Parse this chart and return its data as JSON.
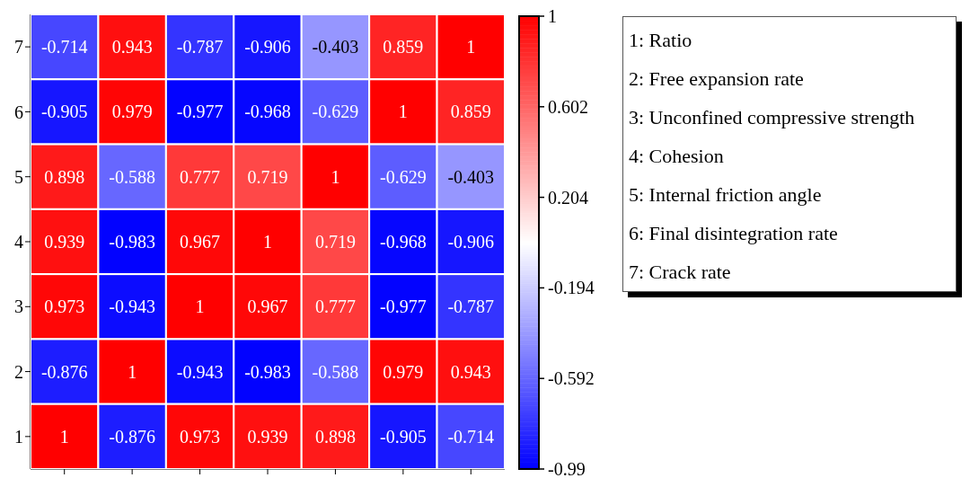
{
  "chart_data": {
    "type": "heatmap",
    "categories": [
      null,
      null,
      null,
      null,
      null,
      null,
      null
    ],
    "y_categories": [
      "7",
      "6",
      "5",
      "4",
      "3",
      "2",
      "1"
    ],
    "cells": [
      [
        -0.714,
        0.943,
        -0.787,
        -0.906,
        -0.403,
        0.859,
        1
      ],
      [
        -0.905,
        0.979,
        -0.977,
        -0.968,
        -0.629,
        1,
        0.859
      ],
      [
        0.898,
        -0.588,
        0.777,
        0.719,
        1,
        -0.629,
        -0.403
      ],
      [
        0.939,
        -0.983,
        0.967,
        1,
        0.719,
        -0.968,
        -0.906
      ],
      [
        0.973,
        -0.943,
        1,
        0.967,
        0.777,
        -0.977,
        -0.787
      ],
      [
        -0.876,
        1,
        -0.943,
        -0.983,
        -0.588,
        0.979,
        0.943
      ],
      [
        1,
        -0.876,
        0.973,
        0.939,
        0.898,
        -0.905,
        -0.714
      ]
    ],
    "data_labels": true,
    "clim": [
      -0.99,
      1
    ],
    "cticks": [
      1,
      0.602,
      0.204,
      -0.194,
      -0.592,
      -0.99
    ],
    "annotations": [
      "1: Ratio",
      "2: Free expansion rate",
      "3: Unconfined compressive strength",
      "4: Cohesion",
      "5: Internal friction angle",
      "6: Final disintegration rate",
      "7: Crack rate"
    ]
  }
}
